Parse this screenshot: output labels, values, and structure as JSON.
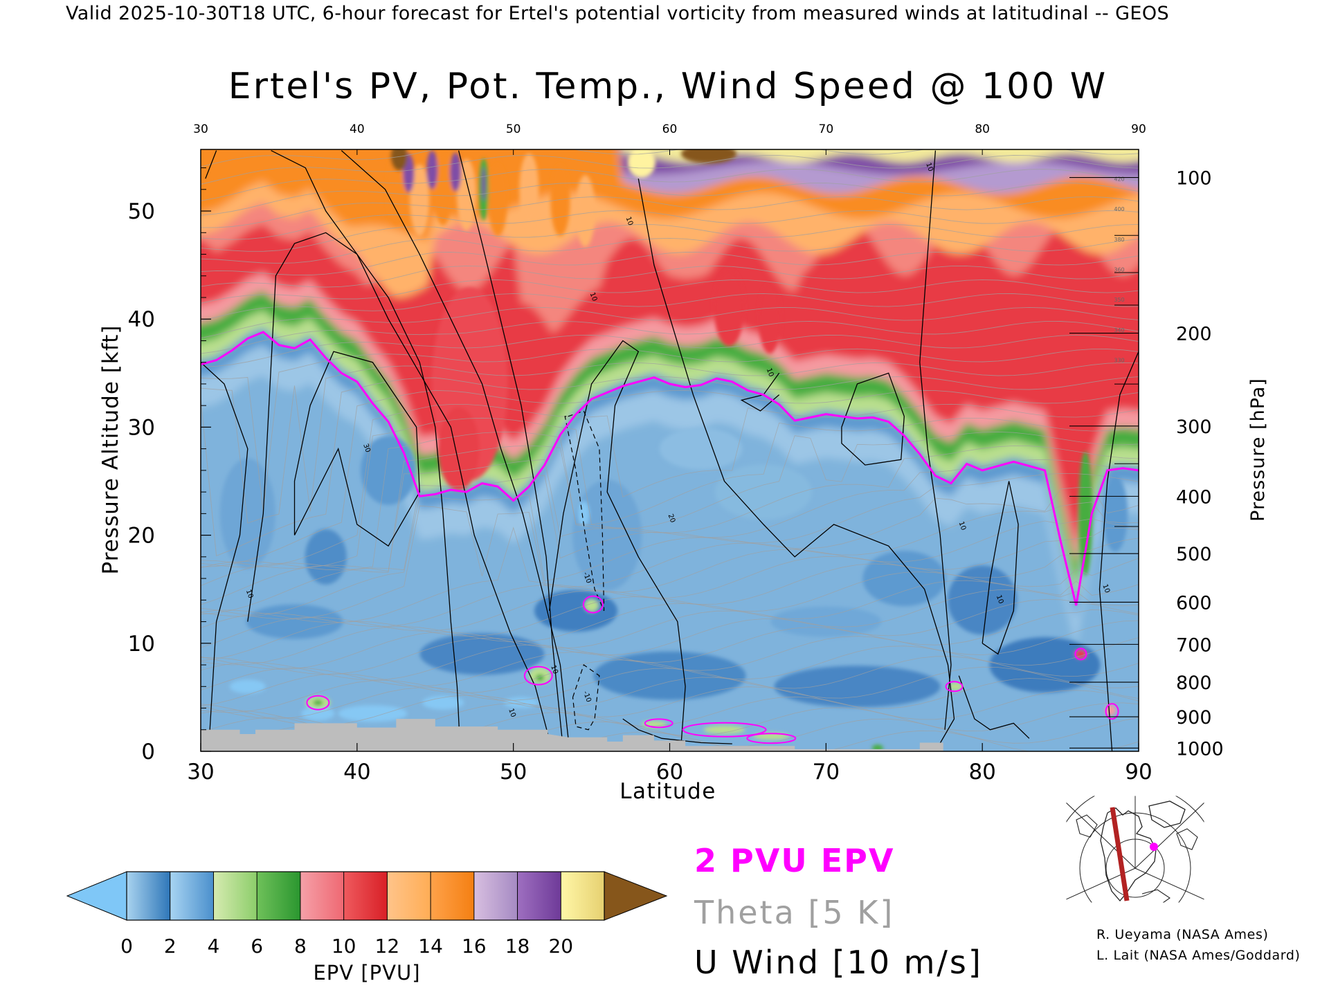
{
  "header": "Valid 2025-10-30T18 UTC, 6-hour forecast for Ertel's potential vorticity from measured winds at latitudinal -- GEOS",
  "colors": {
    "pv_2pvu": "#ff00ff",
    "theta": "#a0a0a0",
    "wind": "#000000",
    "terrain": "#bdbdbd",
    "section_line": "#b22222",
    "location_marker": "#ff00ff"
  },
  "legend": {
    "pv_label": "2 PVU EPV",
    "theta_label": "Theta [5 K]",
    "wind_label": "U Wind [10 m/s]"
  },
  "colorbar": {
    "label": "EPV [PVU]",
    "ticks": [
      "0",
      "2",
      "4",
      "6",
      "8",
      "10",
      "12",
      "14",
      "16",
      "18",
      "20"
    ],
    "bins": [
      [
        "#a9d3ef",
        "#2e76b8"
      ],
      [
        "#a8d4f2",
        "#4a8fcc"
      ],
      [
        "#d6ebb0",
        "#8ccd6a"
      ],
      [
        "#6fc15a",
        "#2a962f"
      ],
      [
        "#f5a0a8",
        "#ef6872"
      ],
      [
        "#ef5a5e",
        "#d81f26"
      ],
      [
        "#ffc48a",
        "#ffad55"
      ],
      [
        "#ffa24a",
        "#f47f12"
      ],
      [
        "#d8bfe0",
        "#a58ac3"
      ],
      [
        "#9e6fc0",
        "#6e3a98"
      ],
      [
        "#fff7a8",
        "#e6d070"
      ]
    ],
    "under_color": "#7fc7f7",
    "over_color": "#86561b"
  },
  "credits": [
    "R. Ueyama (NASA Ames)",
    "L. Lait (NASA Ames/Goddard)"
  ],
  "map_inset": {
    "icon": "polar-stereographic-map-icon"
  },
  "chart_data": {
    "type": "heatmap",
    "title": "Ertel's PV, Pot. Temp., Wind Speed @ 100 W",
    "xlabel": "Latitude",
    "ylabel": "Pressure Altitude [kft]",
    "ylabel_right": "Pressure [hPa]",
    "xlim": [
      30,
      90
    ],
    "ylim": [
      0,
      55.7
    ],
    "x_ticks": [
      "30",
      "40",
      "50",
      "60",
      "70",
      "80",
      "90"
    ],
    "top_ticks": [
      "30",
      "40",
      "50",
      "60",
      "70",
      "80",
      "90"
    ],
    "y_ticks": [
      {
        "label": "0",
        "value": 0
      },
      {
        "label": "10",
        "value": 10
      },
      {
        "label": "20",
        "value": 20
      },
      {
        "label": "30",
        "value": 30
      },
      {
        "label": "40",
        "value": 40
      },
      {
        "label": "50",
        "value": 50
      }
    ],
    "pressure_ticks": [
      {
        "label": "100",
        "value": 53.1
      },
      {
        "label": "200",
        "value": 38.7
      },
      {
        "label": "300",
        "value": 30.1
      },
      {
        "label": "400",
        "value": 23.6
      },
      {
        "label": "500",
        "value": 18.3
      },
      {
        "label": "600",
        "value": 13.8
      },
      {
        "label": "700",
        "value": 9.9
      },
      {
        "label": "800",
        "value": 6.4
      },
      {
        "label": "900",
        "value": 3.2
      },
      {
        "label": "1000",
        "value": 0.3
      }
    ],
    "tropopause_2pvu": {
      "lat": [
        30,
        31,
        32,
        33,
        34,
        35,
        36,
        37,
        38,
        39,
        40,
        41,
        42,
        43,
        44,
        45,
        46,
        47,
        48,
        49,
        50,
        51,
        52,
        53,
        54,
        55,
        56,
        57,
        58,
        59,
        60,
        61,
        62,
        63,
        64,
        65,
        66,
        67,
        68,
        69,
        70,
        71,
        72,
        73,
        74,
        75,
        76,
        77,
        78,
        79,
        80,
        81,
        82,
        83,
        84,
        85,
        86,
        87,
        88,
        89,
        90
      ],
      "kft": [
        35.8,
        36.2,
        37.1,
        38.2,
        38.8,
        37.6,
        37.3,
        38.1,
        36.4,
        35.0,
        34.2,
        32.2,
        30.5,
        27.6,
        23.6,
        23.8,
        24.2,
        24.0,
        24.8,
        24.5,
        23.2,
        24.5,
        26.5,
        29.3,
        31.2,
        32.6,
        33.2,
        33.8,
        34.2,
        34.6,
        34.0,
        33.7,
        33.9,
        34.5,
        34.2,
        33.4,
        33.0,
        32.1,
        30.6,
        30.9,
        31.2,
        31.0,
        30.8,
        30.9,
        30.5,
        29.2,
        27.5,
        25.5,
        24.8,
        26.6,
        26.0,
        26.4,
        26.8,
        26.4,
        26.0,
        19.5,
        13.5,
        22.0,
        26.0,
        26.2,
        26.0
      ]
    },
    "theta_labels": [
      "330",
      "340",
      "350",
      "360",
      "380",
      "400",
      "420"
    ],
    "wind_contour_labels": [
      "10",
      "10",
      "10",
      "20",
      "30",
      "10",
      "10",
      "10",
      "10",
      "10",
      "10",
      "10",
      "-10",
      "-10"
    ],
    "grid": false
  }
}
